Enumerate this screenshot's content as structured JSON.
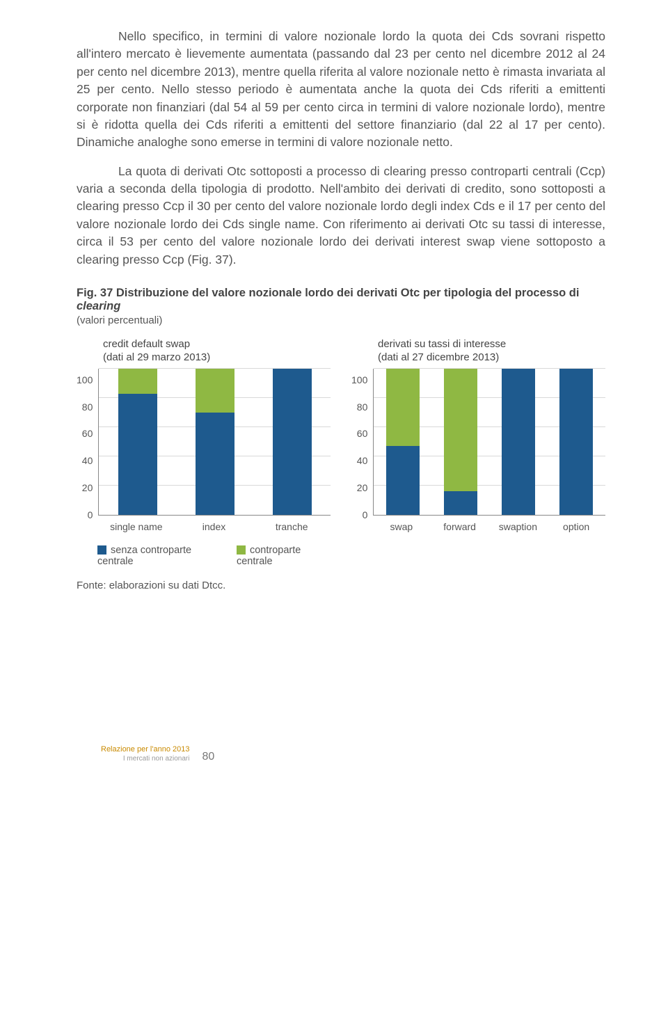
{
  "paragraphs": {
    "p1": "Nello specifico, in termini di valore nozionale lordo la quota dei Cds sovrani rispetto all'intero mercato è lievemente aumentata (passando dal 23 per cento nel dicembre 2012 al 24 per cento nel dicembre 2013), mentre quella riferita al valore nozionale netto è rimasta invariata al 25 per cento. Nello stesso periodo è aumentata anche la quota dei Cds riferiti a emittenti corporate non finanziari (dal 54 al 59 per cento circa in termini di valore nozionale lordo), mentre si è ridotta quella dei Cds riferiti a emittenti del settore finanziario (dal 22 al 17 per cento). Dinamiche analoghe sono emerse in termini di valore nozionale netto.",
    "p2": "La quota di derivati Otc sottoposti a processo di clearing presso controparti centrali (Ccp) varia a seconda della tipologia di prodotto. Nell'ambito dei derivati di credito, sono sottoposti a clearing presso Ccp il 30 per cento del valore nozionale lordo degli index Cds e il 17 per cento del valore nozionale lordo dei Cds single name. Con riferimento ai derivati Otc su tassi di interesse, circa il 53 per cento del valore nozionale lordo dei derivati interest swap viene sottoposto a clearing presso Ccp (Fig. 37)."
  },
  "figure": {
    "label": "Fig. 37 Distribuzione del valore nozionale lordo dei derivati Otc per tipologia del processo di ",
    "label_italic": "clearing",
    "subtitle": "(valori percentuali)",
    "colors": {
      "senza_ccp": "#1e5a8e",
      "ccp": "#8fb843",
      "grid": "#d9d9d9",
      "axis": "#888888"
    },
    "y_ticks": [
      100,
      80,
      60,
      40,
      20,
      0
    ],
    "legend": {
      "item1": "senza controparte centrale",
      "item2": "controparte centrale"
    },
    "chart_left": {
      "title_line1": "credit default swap",
      "title_line2": "(dati al 29 marzo 2013)",
      "categories": [
        "single name",
        "index",
        "tranche"
      ],
      "senza_ccp": [
        83,
        70,
        100
      ],
      "ccp": [
        17,
        30,
        0
      ]
    },
    "chart_right": {
      "title_line1": "derivati su tassi di interesse",
      "title_line2": "(dati al 27 dicembre 2013)",
      "categories": [
        "swap",
        "forward",
        "swaption",
        "option"
      ],
      "senza_ccp": [
        47,
        16,
        100,
        100
      ],
      "ccp": [
        53,
        84,
        0,
        0
      ]
    },
    "source": "Fonte: elaborazioni su dati Dtcc."
  },
  "footer": {
    "line1": "Relazione per l'anno 2013",
    "line2": "I mercati non azionari",
    "page": "80"
  }
}
